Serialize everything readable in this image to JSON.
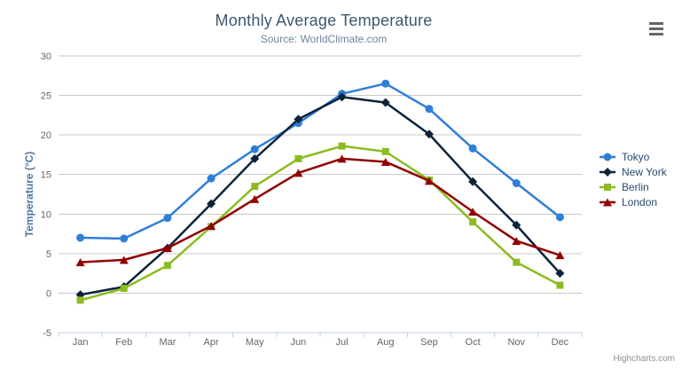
{
  "chart": {
    "title": "Monthly Average Temperature",
    "subtitle": "Source: WorldClimate.com",
    "y_axis_title": "Temperature (°C)",
    "credits": "Highcharts.com"
  },
  "colors": {
    "title": "#3e576f",
    "subtitle": "#6d869f",
    "axis_title": "#4d759e",
    "axis_labels": "#666666",
    "gridline": "#c8c8c8",
    "axis_line": "#c0d0e0",
    "legend_text": "#274b6d",
    "credits": "#909090",
    "menu_icon": "#666666"
  },
  "chart_data": {
    "type": "line",
    "title": "Monthly Average Temperature",
    "subtitle": "Source: WorldClimate.com",
    "xlabel": "",
    "ylabel": "Temperature (°C)",
    "categories": [
      "Jan",
      "Feb",
      "Mar",
      "Apr",
      "May",
      "Jun",
      "Jul",
      "Aug",
      "Sep",
      "Oct",
      "Nov",
      "Dec"
    ],
    "ylim": [
      -5,
      30
    ],
    "yticks": [
      -5,
      0,
      5,
      10,
      15,
      20,
      25,
      30
    ],
    "grid": true,
    "legend_position": "right",
    "series": [
      {
        "name": "Tokyo",
        "color": "#2f7ed8",
        "marker": "circle",
        "values": [
          7.0,
          6.9,
          9.5,
          14.5,
          18.2,
          21.5,
          25.2,
          26.5,
          23.3,
          18.3,
          13.9,
          9.6
        ]
      },
      {
        "name": "New York",
        "color": "#0d233a",
        "marker": "diamond",
        "values": [
          -0.2,
          0.8,
          5.7,
          11.3,
          17.0,
          22.0,
          24.8,
          24.1,
          20.1,
          14.1,
          8.6,
          2.5
        ]
      },
      {
        "name": "Berlin",
        "color": "#8bbc21",
        "marker": "square",
        "values": [
          -0.9,
          0.6,
          3.5,
          8.4,
          13.5,
          17.0,
          18.6,
          17.9,
          14.3,
          9.0,
          3.9,
          1.0
        ]
      },
      {
        "name": "London",
        "color": "#910000",
        "marker": "triangle",
        "values": [
          3.9,
          4.2,
          5.7,
          8.5,
          11.9,
          15.2,
          17.0,
          16.6,
          14.2,
          10.3,
          6.6,
          4.8
        ]
      }
    ]
  }
}
